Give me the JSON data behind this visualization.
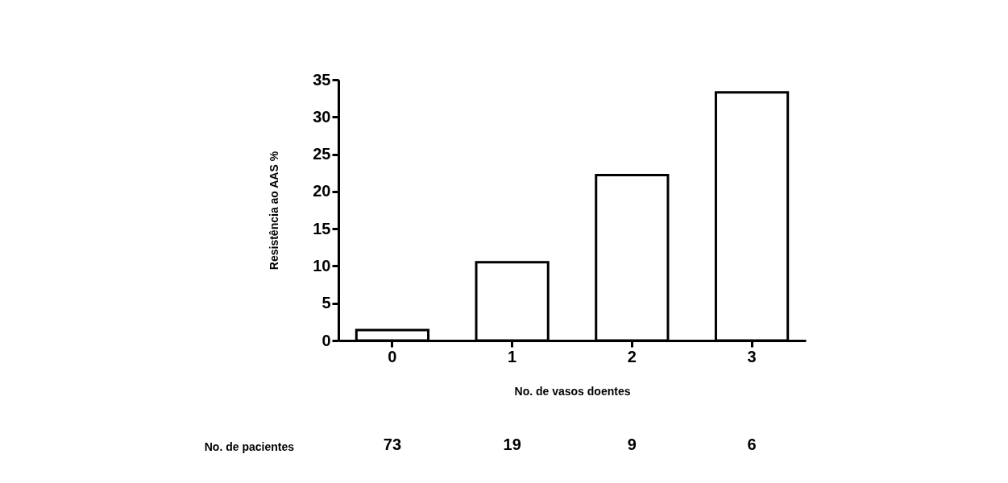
{
  "chart_data": {
    "type": "bar",
    "categories": [
      "0",
      "1",
      "2",
      "3"
    ],
    "values": [
      1.4,
      10.5,
      22.2,
      33.3
    ],
    "color": "#ffffff",
    "ylabel": "Resistência ao AAS %",
    "xlabel": "No. de vasos doentes",
    "ylim": [
      0,
      35
    ],
    "yticks": [
      0,
      5,
      10,
      15,
      20,
      25,
      30,
      35
    ],
    "grid": false,
    "annotations": [
      "No. de pacientes",
      "73",
      "19",
      "9",
      "6"
    ]
  }
}
